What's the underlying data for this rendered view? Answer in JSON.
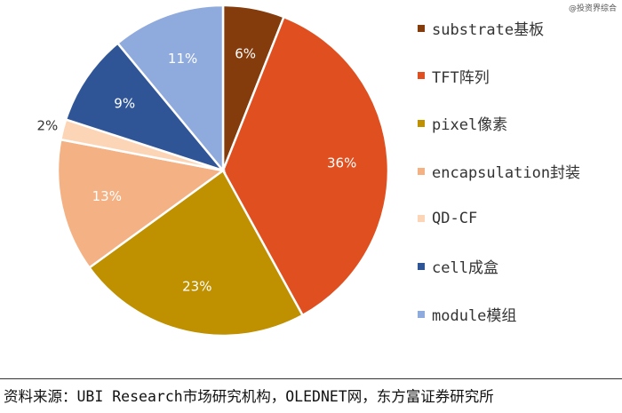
{
  "watermark": "@投资界综合",
  "chart_data": {
    "type": "pie",
    "categories": [
      "substrate基板",
      "TFT阵列",
      "pixel像素",
      "encapsulation封装",
      "QD-CF",
      "cell成盒",
      "module模组"
    ],
    "values": [
      6,
      36,
      23,
      13,
      2,
      9,
      11
    ],
    "labels": [
      "6%",
      "36%",
      "23%",
      "13%",
      "2%",
      "9%",
      "11%"
    ],
    "colors": [
      "#843c0c",
      "#e04f1f",
      "#bf9000",
      "#f4b183",
      "#fbd5b5",
      "#2f5597",
      "#8faadc"
    ],
    "label_colors": [
      "#ffffff",
      "#ffffff",
      "#ffffff",
      "#ffffff",
      "#333333",
      "#ffffff",
      "#ffffff"
    ],
    "legend_position": "right"
  },
  "source": "资料来源：UBI Research市场研究机构，OLEDNET网，东方富证券研究所"
}
